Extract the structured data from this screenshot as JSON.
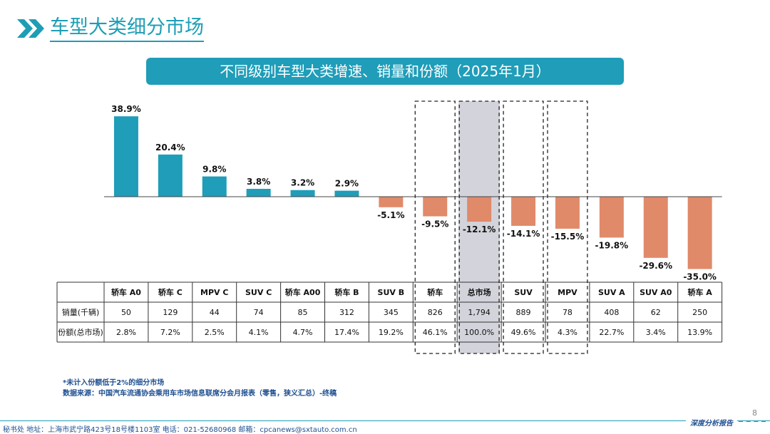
{
  "header": {
    "title": "车型大类细分市场"
  },
  "banner": {
    "text": "不同级别车型大类增速、销量和份额（2025年1月）"
  },
  "chart_data": {
    "type": "bar",
    "categories": [
      "轿车 A0",
      "轿车 C",
      "MPV C",
      "SUV C",
      "轿车 A00",
      "轿车 B",
      "SUV B",
      "轿车",
      "总市场",
      "SUV",
      "MPV",
      "SUV A",
      "SUV A0",
      "轿车 A"
    ],
    "values": [
      38.9,
      20.4,
      9.8,
      3.8,
      3.2,
      2.9,
      -5.1,
      -9.5,
      -12.1,
      -14.1,
      -15.5,
      -19.8,
      -29.6,
      -35.0
    ],
    "value_labels": [
      "38.9%",
      "20.4%",
      "9.8%",
      "3.8%",
      "3.2%",
      "2.9%",
      "-5.1%",
      "-9.5%",
      "-12.1%",
      "-14.1%",
      "-15.5%",
      "-19.8%",
      "-29.6%",
      "-35.0%"
    ],
    "colors": {
      "positive": "#1f9db9",
      "negative": "#e08a6a",
      "highlight": "#d3d3dc"
    },
    "highlight_index": 8,
    "dashed_box_indices": [
      7,
      8,
      9,
      10
    ],
    "table": {
      "rows": [
        {
          "label": "销量(千辆)",
          "values": [
            "50",
            "129",
            "44",
            "74",
            "85",
            "312",
            "345",
            "826",
            "1,794",
            "889",
            "78",
            "408",
            "62",
            "250"
          ]
        },
        {
          "label": "份额(总市场)",
          "values": [
            "2.8%",
            "7.2%",
            "2.5%",
            "4.1%",
            "4.7%",
            "17.4%",
            "19.2%",
            "46.1%",
            "100.0%",
            "49.6%",
            "4.3%",
            "22.7%",
            "3.4%",
            "13.9%"
          ]
        }
      ]
    }
  },
  "notes": {
    "line1": "*未计入份额低于2%的细分市场",
    "line2": "数据来源：中国汽车流通协会乘用车市场信息联席分会月报表（零售，狭义汇总）-终稿"
  },
  "footer": {
    "text": "秘书处   地址：上海市武宁路423号18号楼1103室   电话：021-52680968   邮箱：cpcanews@sxtauto.com.cn",
    "right": "深度分析报告",
    "page_number": "8"
  }
}
